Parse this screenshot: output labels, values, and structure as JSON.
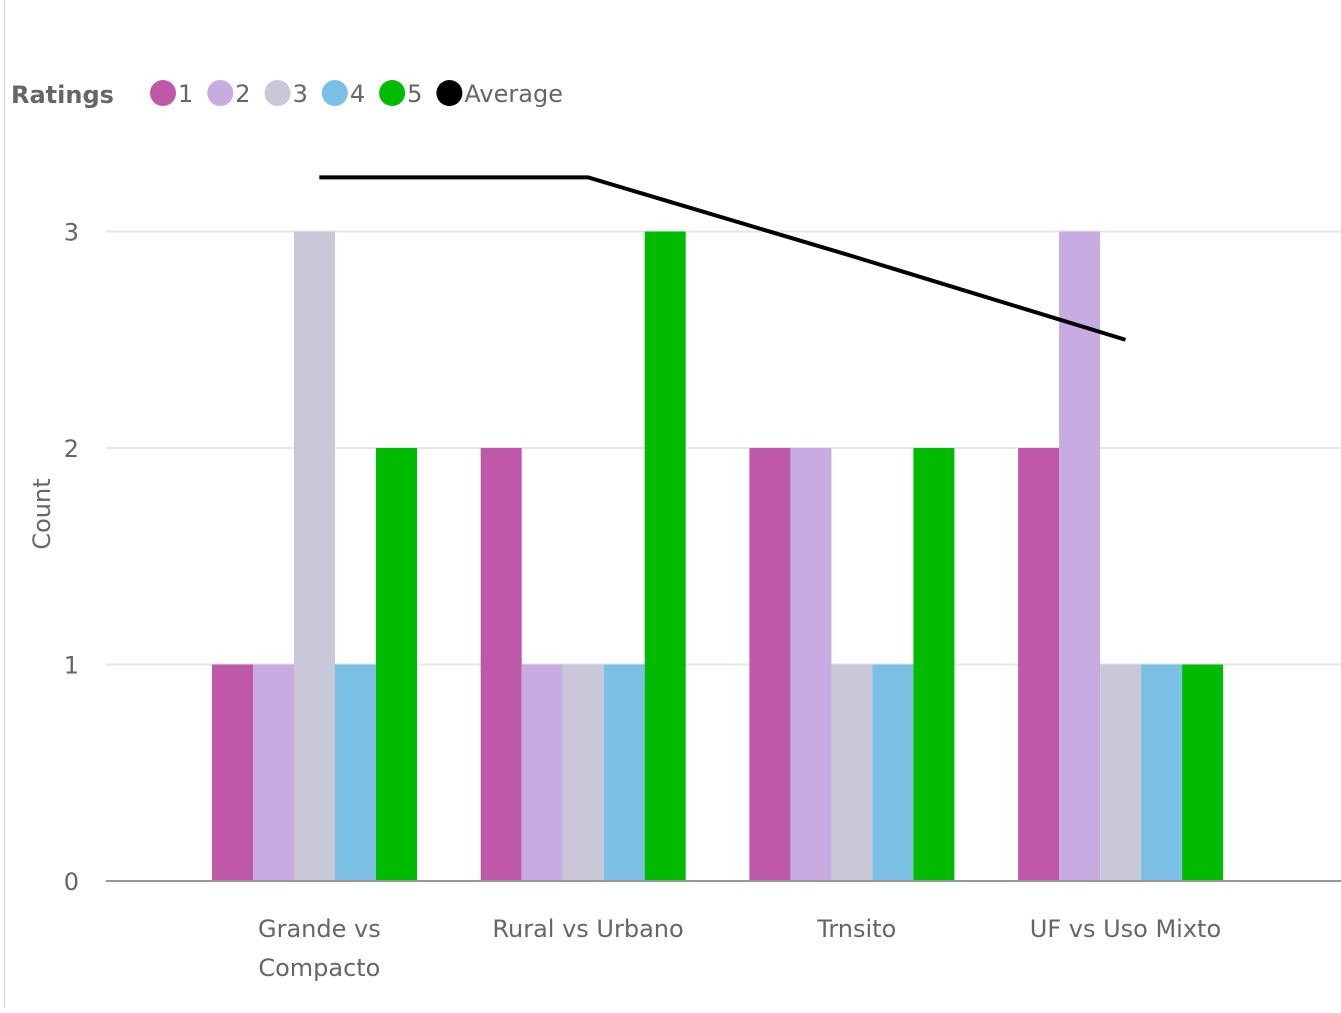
{
  "chart_data": {
    "type": "bar",
    "legend": {
      "title": "Ratings",
      "position": "top-left"
    },
    "categories": [
      "Grande vs Compacto",
      "Rural vs Urbano",
      "Trnsito",
      "UF vs Uso Mixto"
    ],
    "series": [
      {
        "name": "1",
        "color": "#c058aa",
        "values": [
          1,
          2,
          2,
          2
        ]
      },
      {
        "name": "2",
        "color": "#c8abe0",
        "values": [
          1,
          1,
          2,
          3
        ]
      },
      {
        "name": "3",
        "color": "#c8c8d8",
        "values": [
          3,
          1,
          1,
          1
        ]
      },
      {
        "name": "4",
        "color": "#7bc0e4",
        "values": [
          1,
          1,
          1,
          1
        ]
      },
      {
        "name": "5",
        "color": "#00bb00",
        "values": [
          2,
          3,
          2,
          1
        ]
      }
    ],
    "line_series": {
      "name": "Average",
      "color": "#000000",
      "values": [
        3.25,
        3.25,
        2.88,
        2.5
      ]
    },
    "ylabel": "Count",
    "xlabel": "",
    "ylim": [
      0,
      3.4
    ],
    "yticks": [
      0,
      1,
      2,
      3
    ],
    "grid": true
  }
}
